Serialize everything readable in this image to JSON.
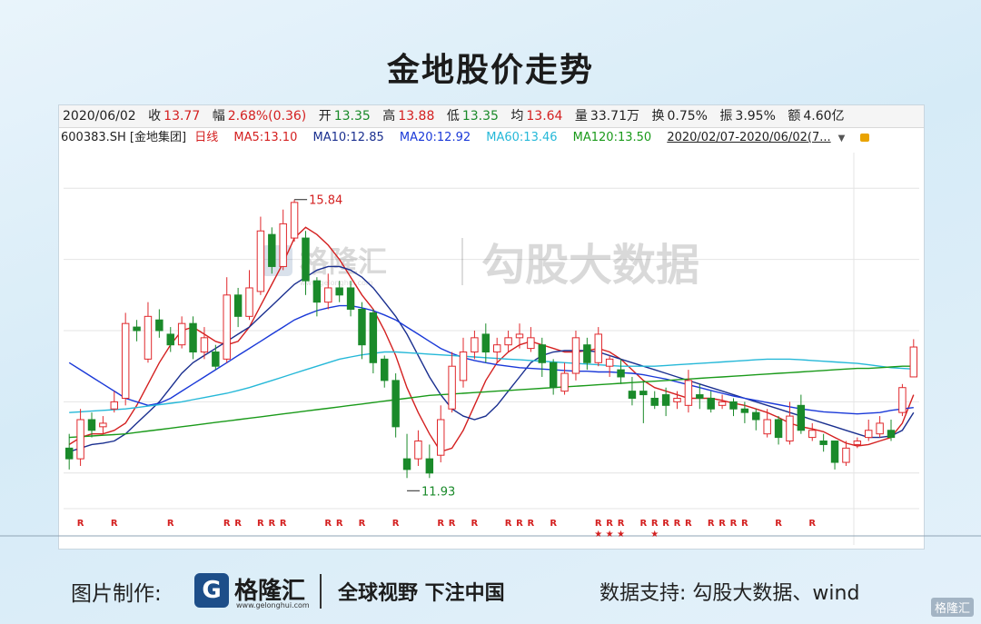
{
  "title": "金地股价走势",
  "info": {
    "date": "2020/06/02",
    "close_label": "收",
    "close": "13.77",
    "change_label": "幅",
    "change": "2.68%(0.36)",
    "open_label": "开",
    "open": "13.35",
    "high_label": "高",
    "high": "13.88",
    "low_label": "低",
    "low": "13.35",
    "avg_label": "均",
    "avg": "13.64",
    "vol_label": "量",
    "vol": "33.71万",
    "turnover_label": "换",
    "turnover": "0.75%",
    "amplitude_label": "振",
    "amplitude": "3.95%",
    "amount_label": "额",
    "amount": "4.60亿"
  },
  "ma_line": {
    "code": "600383.SH [金地集团]",
    "period": "日线",
    "ma5": "MA5:13.10",
    "ma10": "MA10:12.85",
    "ma20": "MA20:12.92",
    "ma60": "MA60:13.46",
    "ma120": "MA120:13.50",
    "range": "2020/02/07-2020/06/02(7..."
  },
  "watermark": {
    "brand": "格隆汇",
    "url": "www.gelonghui.com",
    "data_brand": "勾股大数据"
  },
  "annotations": {
    "max": "15.84",
    "min": "11.93"
  },
  "markers": {
    "r": "R",
    "star": "★"
  },
  "footer": {
    "credit": "图片制作:",
    "brand": "格隆汇",
    "brand_url": "www.gelonghui.com",
    "slogan": "全球视野 下注中国",
    "source": "数据支持:  勾股大数据、wind",
    "corner": "格隆汇"
  },
  "colors": {
    "up": "#e0282c",
    "down": "#1a8a2a",
    "ma5": "#d42020",
    "ma10": "#1a2f8f",
    "ma20": "#1a39d8",
    "ma60": "#25b8d8",
    "ma120": "#1a9a1a"
  },
  "chart_data": {
    "type": "candlestick",
    "title": "金地股价走势",
    "ylim": [
      11.5,
      16.5
    ],
    "grid": true,
    "candles": [
      [
        12.35,
        12.2,
        12.55,
        12.05
      ],
      [
        12.2,
        12.75,
        12.9,
        12.1
      ],
      [
        12.75,
        12.6,
        12.85,
        12.5
      ],
      [
        12.65,
        12.7,
        12.8,
        12.55
      ],
      [
        12.9,
        13.0,
        13.15,
        12.85
      ],
      [
        13.05,
        14.1,
        14.25,
        12.95
      ],
      [
        14.05,
        14.0,
        14.15,
        13.85
      ],
      [
        13.6,
        14.2,
        14.4,
        13.55
      ],
      [
        14.15,
        14.0,
        14.3,
        13.9
      ],
      [
        13.95,
        13.8,
        14.05,
        13.7
      ],
      [
        13.8,
        14.1,
        14.2,
        13.75
      ],
      [
        14.1,
        13.7,
        14.2,
        13.6
      ],
      [
        13.7,
        13.9,
        14.05,
        13.6
      ],
      [
        13.7,
        13.5,
        13.8,
        13.45
      ],
      [
        13.6,
        14.5,
        14.75,
        13.55
      ],
      [
        14.5,
        14.2,
        14.6,
        14.05
      ],
      [
        14.2,
        14.6,
        14.85,
        14.15
      ],
      [
        14.55,
        15.4,
        15.6,
        14.5
      ],
      [
        15.35,
        14.9,
        15.45,
        14.8
      ],
      [
        14.9,
        15.5,
        15.7,
        14.85
      ],
      [
        15.3,
        15.8,
        15.84,
        15.25
      ],
      [
        15.3,
        14.7,
        15.4,
        14.5
      ],
      [
        14.7,
        14.4,
        14.75,
        14.2
      ],
      [
        14.4,
        14.6,
        14.8,
        14.3
      ],
      [
        14.6,
        14.5,
        14.7,
        14.4
      ],
      [
        14.6,
        14.3,
        14.7,
        14.2
      ],
      [
        14.3,
        13.8,
        14.4,
        13.6
      ],
      [
        14.25,
        13.55,
        14.3,
        13.4
      ],
      [
        13.6,
        13.3,
        13.65,
        13.2
      ],
      [
        13.3,
        12.65,
        13.4,
        12.5
      ],
      [
        12.2,
        12.05,
        12.55,
        11.93
      ],
      [
        12.2,
        12.45,
        12.6,
        12.1
      ],
      [
        12.2,
        12.0,
        12.4,
        11.93
      ],
      [
        12.25,
        12.75,
        12.95,
        12.15
      ],
      [
        12.9,
        13.5,
        13.7,
        12.85
      ],
      [
        13.3,
        13.7,
        13.9,
        13.2
      ],
      [
        13.7,
        13.9,
        14.0,
        13.6
      ],
      [
        13.95,
        13.7,
        14.1,
        13.55
      ],
      [
        13.7,
        13.8,
        13.9,
        13.55
      ],
      [
        13.8,
        13.9,
        14.0,
        13.7
      ],
      [
        13.9,
        13.95,
        14.1,
        13.75
      ],
      [
        13.75,
        13.9,
        14.05,
        13.7
      ],
      [
        13.8,
        13.55,
        13.9,
        13.35
      ],
      [
        13.55,
        13.2,
        13.6,
        13.1
      ],
      [
        13.15,
        13.4,
        13.55,
        13.1
      ],
      [
        13.4,
        13.9,
        14.0,
        13.3
      ],
      [
        13.8,
        13.55,
        13.9,
        13.45
      ],
      [
        13.55,
        13.95,
        14.05,
        13.5
      ],
      [
        13.5,
        13.6,
        13.65,
        13.35
      ],
      [
        13.45,
        13.35,
        13.6,
        13.25
      ],
      [
        13.15,
        13.05,
        13.35,
        12.95
      ],
      [
        13.15,
        13.1,
        13.3,
        12.7
      ],
      [
        13.05,
        12.95,
        13.15,
        12.9
      ],
      [
        13.1,
        12.95,
        13.2,
        12.8
      ],
      [
        13.0,
        13.05,
        13.15,
        12.9
      ],
      [
        12.95,
        13.3,
        13.45,
        12.85
      ],
      [
        13.1,
        13.05,
        13.25,
        12.9
      ],
      [
        13.05,
        12.9,
        13.15,
        12.85
      ],
      [
        12.95,
        13.0,
        13.1,
        12.9
      ],
      [
        13.0,
        12.9,
        13.05,
        12.8
      ],
      [
        12.9,
        12.85,
        13.0,
        12.7
      ],
      [
        12.85,
        12.75,
        12.9,
        12.6
      ],
      [
        12.55,
        12.75,
        12.9,
        12.5
      ],
      [
        12.75,
        12.5,
        12.8,
        12.4
      ],
      [
        12.45,
        12.8,
        13.0,
        12.4
      ],
      [
        12.95,
        12.6,
        13.1,
        12.55
      ],
      [
        12.5,
        12.6,
        12.7,
        12.45
      ],
      [
        12.45,
        12.4,
        12.55,
        12.3
      ],
      [
        12.45,
        12.15,
        12.45,
        12.05
      ],
      [
        12.15,
        12.35,
        12.45,
        12.1
      ],
      [
        12.4,
        12.45,
        12.5,
        12.35
      ],
      [
        12.5,
        12.6,
        12.75,
        12.45
      ],
      [
        12.55,
        12.7,
        12.8,
        12.5
      ],
      [
        12.6,
        12.5,
        12.75,
        12.45
      ],
      [
        12.85,
        13.2,
        13.25,
        12.8
      ],
      [
        13.35,
        13.77,
        13.88,
        13.35
      ]
    ],
    "series": [
      {
        "name": "MA5",
        "values": [
          12.4,
          12.5,
          12.55,
          12.55,
          12.6,
          12.7,
          12.95,
          13.25,
          13.55,
          13.8,
          14.0,
          14.05,
          13.95,
          13.85,
          13.8,
          13.85,
          14.05,
          14.35,
          14.65,
          14.95,
          15.3,
          15.45,
          15.35,
          15.2,
          15.0,
          14.75,
          14.5,
          14.3,
          14.0,
          13.65,
          13.2,
          12.85,
          12.55,
          12.3,
          12.35,
          12.6,
          12.95,
          13.3,
          13.55,
          13.7,
          13.8,
          13.85,
          13.8,
          13.75,
          13.7,
          13.7,
          13.72,
          13.75,
          13.7,
          13.6,
          13.45,
          13.3,
          13.2,
          13.15,
          13.1,
          13.05,
          13.05,
          13.05,
          13.02,
          12.98,
          12.95,
          12.9,
          12.85,
          12.78,
          12.7,
          12.65,
          12.62,
          12.58,
          12.5,
          12.42,
          12.38,
          12.4,
          12.45,
          12.5,
          12.7,
          13.1
        ]
      },
      {
        "name": "MA10",
        "values": [
          12.3,
          12.35,
          12.4,
          12.42,
          12.45,
          12.55,
          12.7,
          12.85,
          13.0,
          13.2,
          13.4,
          13.55,
          13.65,
          13.75,
          13.85,
          13.95,
          14.05,
          14.2,
          14.35,
          14.5,
          14.65,
          14.75,
          14.85,
          14.9,
          14.9,
          14.85,
          14.75,
          14.6,
          14.4,
          14.2,
          13.95,
          13.65,
          13.35,
          13.1,
          12.9,
          12.8,
          12.75,
          12.8,
          12.95,
          13.15,
          13.35,
          13.55,
          13.65,
          13.7,
          13.72,
          13.72,
          13.72,
          13.7,
          13.65,
          13.6,
          13.55,
          13.5,
          13.45,
          13.4,
          13.35,
          13.3,
          13.25,
          13.2,
          13.15,
          13.1,
          13.05,
          13.0,
          12.95,
          12.9,
          12.85,
          12.8,
          12.75,
          12.7,
          12.65,
          12.6,
          12.55,
          12.5,
          12.5,
          12.52,
          12.6,
          12.85
        ]
      },
      {
        "name": "MA20",
        "values": [
          13.55,
          13.45,
          13.35,
          13.25,
          13.15,
          13.05,
          13.0,
          12.95,
          12.98,
          13.05,
          13.15,
          13.25,
          13.35,
          13.45,
          13.55,
          13.65,
          13.75,
          13.85,
          13.95,
          14.05,
          14.15,
          14.22,
          14.28,
          14.32,
          14.35,
          14.35,
          14.32,
          14.28,
          14.22,
          14.15,
          14.05,
          13.95,
          13.85,
          13.75,
          13.68,
          13.62,
          13.58,
          13.55,
          13.52,
          13.5,
          13.48,
          13.47,
          13.46,
          13.45,
          13.44,
          13.43,
          13.43,
          13.42,
          13.42,
          13.41,
          13.4,
          13.38,
          13.35,
          13.32,
          13.28,
          13.24,
          13.2,
          13.16,
          13.12,
          13.08,
          13.05,
          13.02,
          12.99,
          12.96,
          12.93,
          12.9,
          12.88,
          12.86,
          12.85,
          12.84,
          12.83,
          12.84,
          12.85,
          12.88,
          12.9,
          12.92
        ]
      },
      {
        "name": "MA60",
        "values": [
          12.85,
          12.86,
          12.87,
          12.88,
          12.89,
          12.9,
          12.92,
          12.94,
          12.96,
          12.98,
          13.0,
          13.03,
          13.06,
          13.09,
          13.12,
          13.16,
          13.2,
          13.25,
          13.3,
          13.35,
          13.4,
          13.45,
          13.5,
          13.55,
          13.6,
          13.63,
          13.66,
          13.68,
          13.7,
          13.7,
          13.69,
          13.68,
          13.67,
          13.66,
          13.65,
          13.64,
          13.63,
          13.62,
          13.61,
          13.6,
          13.59,
          13.58,
          13.57,
          13.56,
          13.55,
          13.54,
          13.53,
          13.52,
          13.51,
          13.5,
          13.5,
          13.5,
          13.5,
          13.51,
          13.52,
          13.53,
          13.54,
          13.55,
          13.56,
          13.57,
          13.58,
          13.59,
          13.6,
          13.6,
          13.6,
          13.59,
          13.58,
          13.57,
          13.56,
          13.55,
          13.54,
          13.52,
          13.5,
          13.48,
          13.47,
          13.46
        ]
      },
      {
        "name": "MA120",
        "values": [
          12.5,
          12.51,
          12.52,
          12.53,
          12.54,
          12.55,
          12.57,
          12.59,
          12.61,
          12.63,
          12.65,
          12.67,
          12.69,
          12.71,
          12.73,
          12.75,
          12.77,
          12.79,
          12.81,
          12.83,
          12.85,
          12.87,
          12.89,
          12.91,
          12.93,
          12.95,
          12.97,
          12.99,
          13.01,
          13.03,
          13.05,
          13.07,
          13.09,
          13.1,
          13.11,
          13.12,
          13.13,
          13.14,
          13.15,
          13.16,
          13.17,
          13.18,
          13.19,
          13.2,
          13.21,
          13.22,
          13.23,
          13.24,
          13.25,
          13.26,
          13.27,
          13.28,
          13.29,
          13.3,
          13.31,
          13.32,
          13.33,
          13.34,
          13.35,
          13.36,
          13.37,
          13.38,
          13.39,
          13.4,
          13.41,
          13.42,
          13.43,
          13.44,
          13.45,
          13.46,
          13.47,
          13.47,
          13.48,
          13.49,
          13.5,
          13.5
        ]
      }
    ],
    "r_marks": [
      1,
      4,
      9,
      14,
      15,
      17,
      18,
      19,
      23,
      24,
      26,
      29,
      33,
      34,
      36,
      39,
      40,
      41,
      43,
      47,
      48,
      49,
      51,
      52,
      53,
      54,
      55,
      57,
      58,
      59,
      60,
      63,
      66
    ],
    "star_marks": [
      47,
      48,
      49,
      52
    ]
  }
}
